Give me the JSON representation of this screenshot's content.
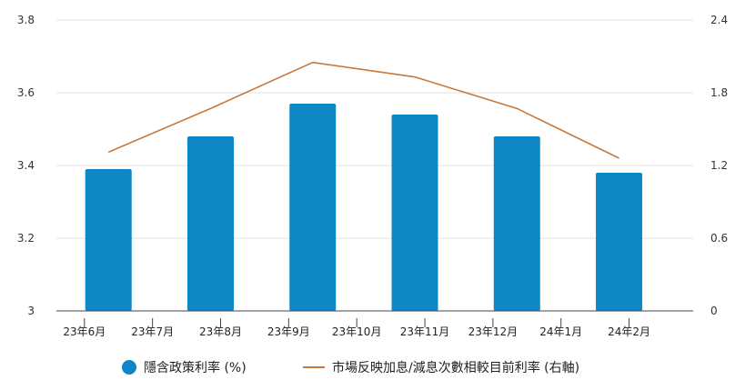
{
  "chart_data": {
    "type": "bar",
    "categories": [
      "23年6月",
      "23年7月",
      "23年8月",
      "23年9月",
      "23年10月",
      "23年11月",
      "23年12月",
      "24年1月",
      "24年2月"
    ],
    "bar_positions": [
      0.6,
      3.15,
      5.7,
      8.25,
      10.8,
      13.35
    ],
    "x_ticks": [
      0,
      1.7,
      3.4,
      5.1,
      6.8,
      8.5,
      10.2,
      11.9,
      13.6
    ],
    "series": [
      {
        "name": "隱含政策利率 (%)",
        "type": "bar",
        "axis": "left",
        "color": "#0f86c6",
        "x": [
          0.6,
          3.15,
          5.7,
          8.25,
          10.8,
          13.35
        ],
        "values": [
          3.39,
          3.48,
          3.57,
          3.54,
          3.48,
          3.38
        ]
      },
      {
        "name": "市場反映加息/減息次數相較目前利率 (右軸)",
        "type": "line",
        "axis": "right",
        "color": "#c8783a",
        "x": [
          0.6,
          3.15,
          5.7,
          8.25,
          10.8,
          13.35
        ],
        "values": [
          1.31,
          1.67,
          2.05,
          1.93,
          1.67,
          1.26
        ]
      }
    ],
    "y_left": {
      "ticks": [
        3,
        3.2,
        3.4,
        3.6,
        3.8
      ],
      "labels": [
        "3",
        "3.2",
        "3.4",
        "3.6",
        "3.8"
      ],
      "range": [
        3,
        3.8
      ]
    },
    "y_right": {
      "ticks": [
        0,
        0.6,
        1.2,
        1.8,
        2.4
      ],
      "labels": [
        "0",
        "0.6",
        "1.2",
        "1.8",
        "2.4"
      ],
      "range": [
        0,
        2.4
      ]
    },
    "x_range": [
      -0.7,
      15.2
    ],
    "grid": true,
    "legend_placement": "bottom"
  }
}
